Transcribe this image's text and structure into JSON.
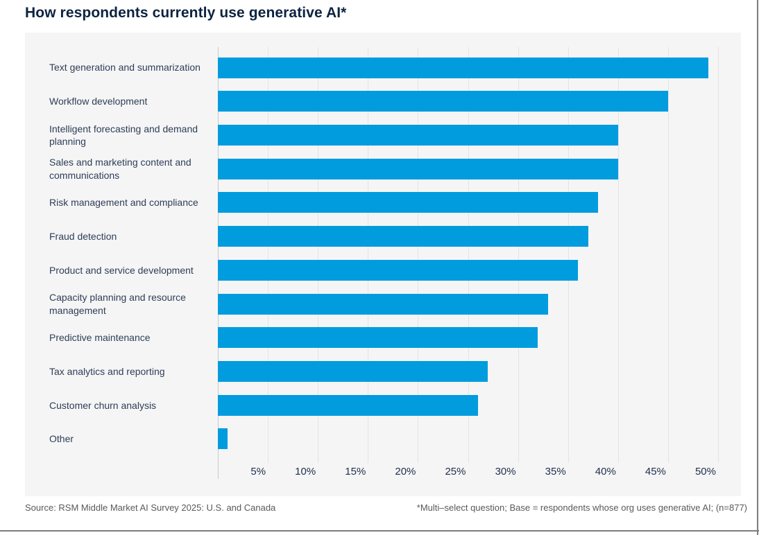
{
  "title": "How respondents currently use generative AI*",
  "footer": {
    "source": "Source: RSM Middle Market AI Survey 2025: U.S. and Canada",
    "note": "*Multi–select question; Base = respondents whose org uses generative AI; (n=877)"
  },
  "colors": {
    "bar": "#009CDE",
    "title_navy": "#0C2340",
    "label_navy": "#2E3D55",
    "tick_navy": "#1F2D4A",
    "panel_bg": "#F5F5F6",
    "gridline": "#E3E3E3",
    "axis_line": "#C5C8CC",
    "footer_gray": "#595959",
    "border_gray": "#7D7D7D"
  },
  "chart_data": {
    "type": "bar",
    "orientation": "horizontal",
    "title": "How respondents currently use generative AI*",
    "categories": [
      "Text generation and summarization",
      "Workflow development",
      "Intelligent forecasting and demand planning",
      "Sales and marketing content and communications",
      "Risk management and compliance",
      "Fraud detection",
      "Product and service development",
      "Capacity planning and resource management",
      "Predictive maintenance",
      "Tax analytics and reporting",
      "Customer churn analysis",
      "Other"
    ],
    "values": [
      49,
      45,
      40,
      40,
      38,
      37,
      36,
      33,
      32,
      27,
      26,
      1
    ],
    "unit": "%",
    "xlim": [
      0,
      50
    ],
    "xtick_step": 5,
    "xticks": [
      "5%",
      "10%",
      "15%",
      "20%",
      "25%",
      "30%",
      "35%",
      "40%",
      "45%",
      "50%"
    ],
    "grid": true,
    "legend": false
  }
}
